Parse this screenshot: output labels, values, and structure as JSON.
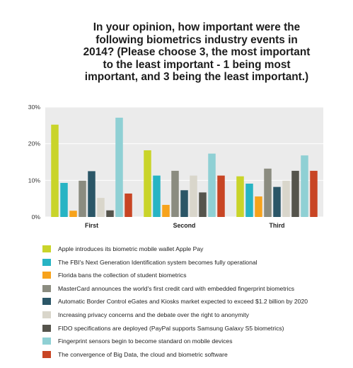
{
  "title_lines": [
    "In your opinion, how important were the",
    "following biometrics industry events in",
    "2014? (Please choose 3, the most important",
    "to the least important - 1 being most",
    "important, and 3 being the least important.)"
  ],
  "chart_data": {
    "type": "bar",
    "title": "In your opinion, how important were the following biometrics industry events in 2014? (Please choose 3, the most important to the least important - 1 being most important, and 3 being the least important.)",
    "categories": [
      "First",
      "Second",
      "Third"
    ],
    "yticks": [
      "0%",
      "10%",
      "20%",
      "30%"
    ],
    "ylim": [
      0,
      30
    ],
    "grid": true,
    "legend_position": "bottom",
    "series": [
      {
        "name": "Apple introduces its biometric mobile wallet Apple Pay",
        "color": "#c9d42a",
        "values": [
          25.2,
          18.2,
          11.1
        ]
      },
      {
        "name": "The FBI's Next Generation Identification system becomes fully operational",
        "color": "#27b4c4",
        "values": [
          9.3,
          11.3,
          9.1
        ]
      },
      {
        "name": "Florida bans the collection of student biometrics",
        "color": "#f7a31c",
        "values": [
          1.7,
          3.3,
          5.6
        ]
      },
      {
        "name": "MasterCard announces the world's first credit card with embedded fingerprint biometrics",
        "color": "#8b8c80",
        "values": [
          9.9,
          12.6,
          13.2
        ]
      },
      {
        "name": "Automatic Border Control eGates and Kiosks market expected to exceed $1.2 billion by 2020",
        "color": "#2b5667",
        "values": [
          12.5,
          7.3,
          8.2
        ]
      },
      {
        "name": "Increasing privacy concerns and the debate over the right to anonymity",
        "color": "#d9d6cb",
        "values": [
          5.2,
          11.3,
          9.9
        ]
      },
      {
        "name": "FIDO specifications are deployed (PayPal supports Samsung Galaxy S5 biometrics)",
        "color": "#55544c",
        "values": [
          1.8,
          6.7,
          12.6
        ]
      },
      {
        "name": "Fingerprint sensors begin to become standard on mobile devices",
        "color": "#8fd0d4",
        "values": [
          27.1,
          17.3,
          16.8
        ]
      },
      {
        "name": "The convergence of Big Data, the cloud and biometric software",
        "color": "#c84524",
        "values": [
          6.4,
          11.3,
          12.6
        ]
      }
    ]
  }
}
